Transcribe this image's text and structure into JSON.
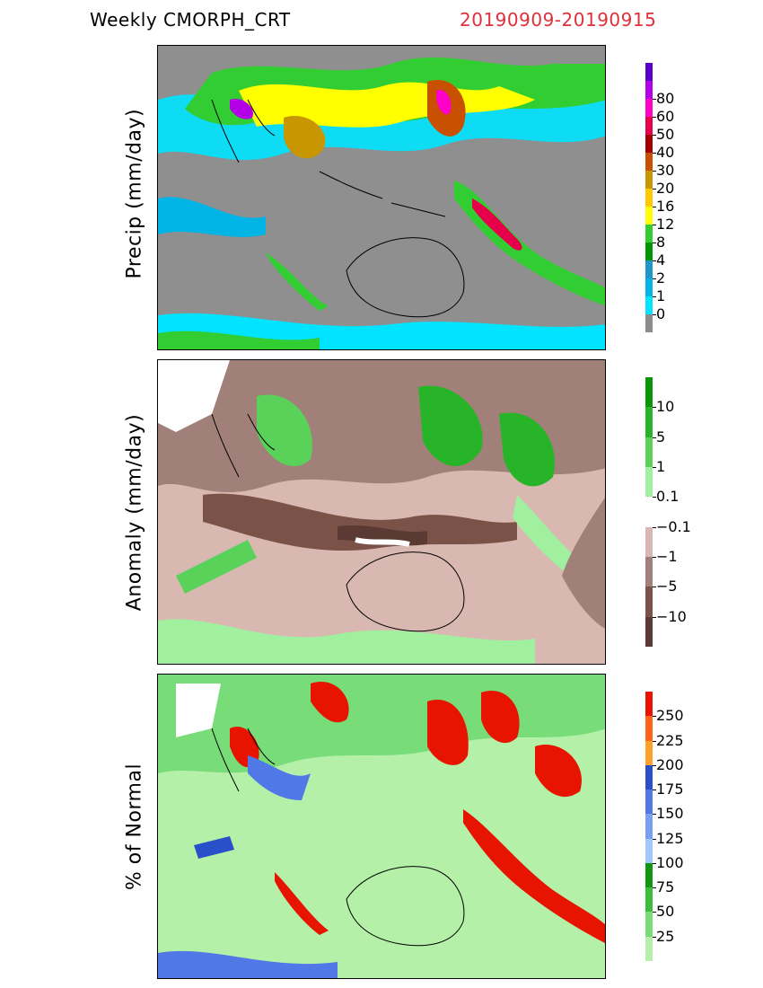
{
  "header": {
    "title": "Weekly  CMORPH_CRT",
    "date_range": "20190909-20190915",
    "date_color": "#e0303a"
  },
  "panels": [
    {
      "id": "precip",
      "ylabel": "Precip  (mm/day)",
      "background": "#8f8f8f",
      "colorbar": {
        "colors": [
          "#8c8c8c",
          "#00e4ff",
          "#00b4e6",
          "#1e96c8",
          "#009600",
          "#32cd32",
          "#ffff00",
          "#ffc800",
          "#c89600",
          "#c85000",
          "#a00000",
          "#e6004b",
          "#ff00c8",
          "#b400e6",
          "#5a00c8"
        ],
        "labels": [
          "0",
          "1",
          "2",
          "4",
          "8",
          "12",
          "16",
          "20",
          "30",
          "40",
          "50",
          "60",
          "80"
        ]
      }
    },
    {
      "id": "anomaly",
      "ylabel": "Anomaly  (mm/day)",
      "background": "#d8b8b0",
      "colorbar": {
        "colors": [
          "#5a3a32",
          "#7a5248",
          "#a08078",
          "#d8b8b0",
          "#ffffff",
          "#a0f0a0",
          "#5ad25a",
          "#28b428",
          "#089608"
        ],
        "labels": [
          "−10",
          "−5",
          "−1",
          "−0.1",
          "0.1",
          "1",
          "5",
          "10"
        ]
      }
    },
    {
      "id": "percent",
      "ylabel": "%  of  Normal",
      "background": "#b4f0a8",
      "colorbar": {
        "colors": [
          "#b4f0a8",
          "#78dc78",
          "#3cbe3c",
          "#109610",
          "#a0c8ff",
          "#78a0f0",
          "#5078e6",
          "#2850c8",
          "#ffa028",
          "#ff6418",
          "#e61400"
        ],
        "labels": [
          "25",
          "50",
          "75",
          "100",
          "125",
          "150",
          "175",
          "200",
          "225",
          "250"
        ]
      }
    }
  ]
}
